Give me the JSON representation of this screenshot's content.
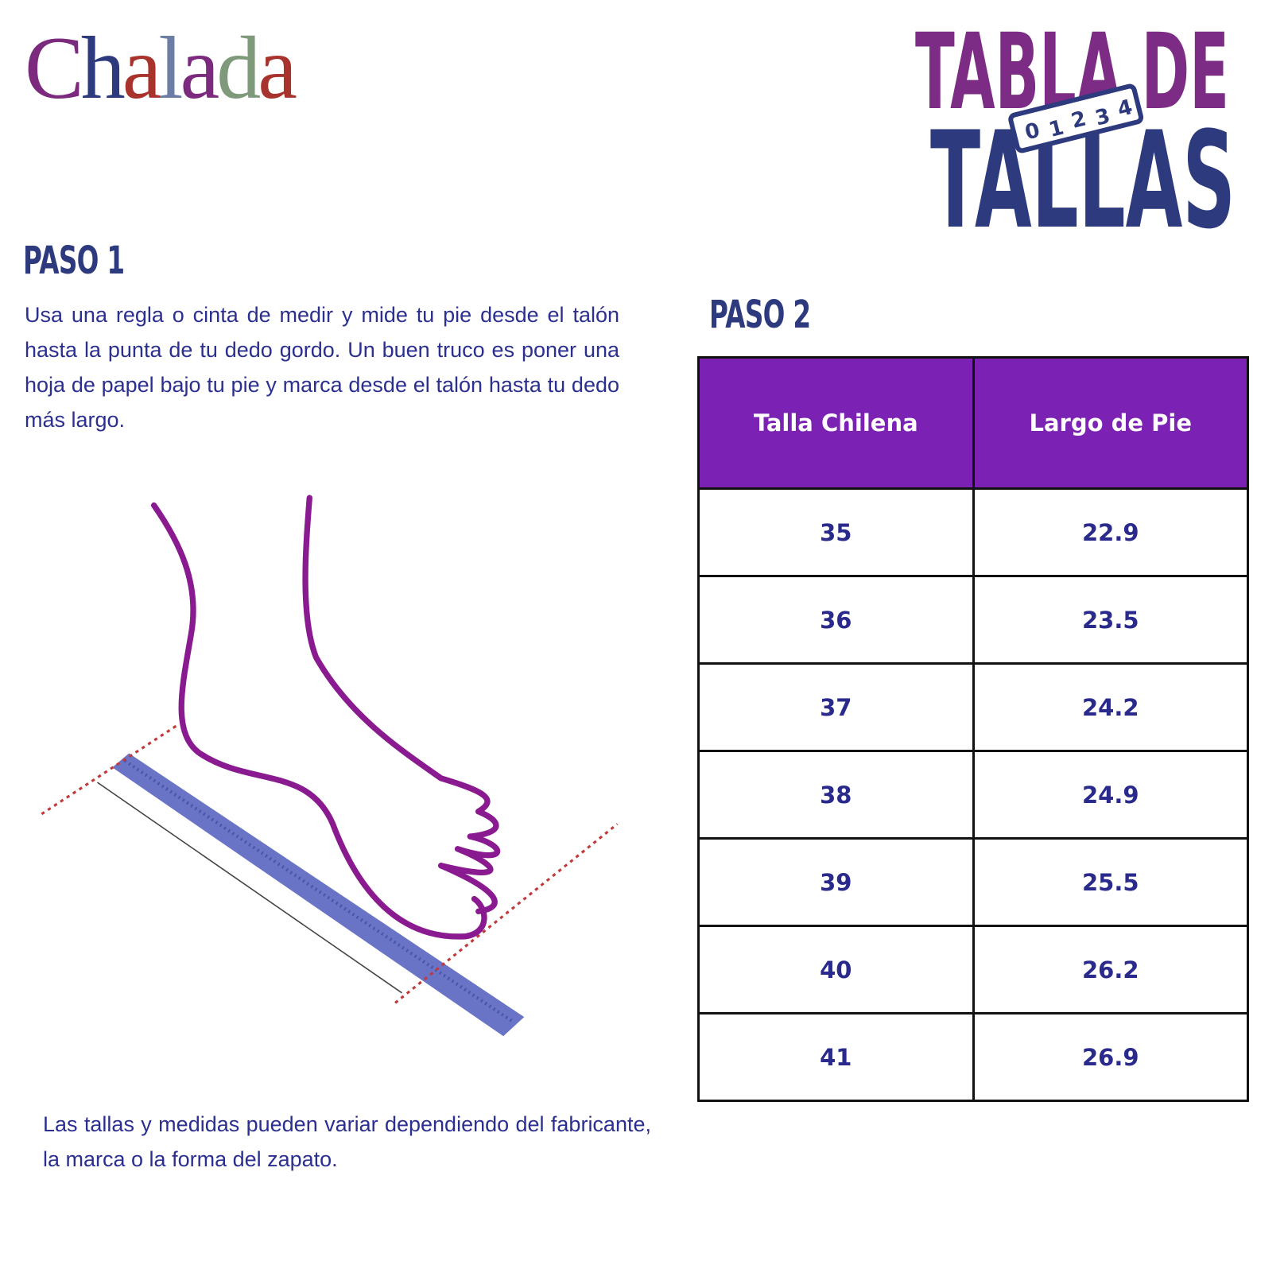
{
  "logo": "Chalada",
  "header": {
    "title_line1": "TABLA DE",
    "title_line2": "TALLAS",
    "ruler_numbers": [
      "0",
      "1",
      "2",
      "3",
      "4"
    ]
  },
  "step1": {
    "heading": "PASO 1",
    "text": "Usa una regla o cinta de medir y mide tu pie desde el talón hasta la punta de tu dedo gordo. Un buen truco es poner una hoja de papel bajo tu pie y marca desde el talón hasta tu dedo más largo."
  },
  "note": "Las tallas y medidas pueden variar dependiendo del fabricante, la marca o la forma del zapato.",
  "step2": {
    "heading": "PASO 2"
  },
  "table": {
    "columns": [
      "Talla Chilena",
      "Largo de Pie"
    ],
    "rows": [
      [
        "35",
        "22.9"
      ],
      [
        "36",
        "23.5"
      ],
      [
        "37",
        "24.2"
      ],
      [
        "38",
        "24.9"
      ],
      [
        "39",
        "25.5"
      ],
      [
        "40",
        "26.2"
      ],
      [
        "41",
        "26.9"
      ]
    ]
  }
}
